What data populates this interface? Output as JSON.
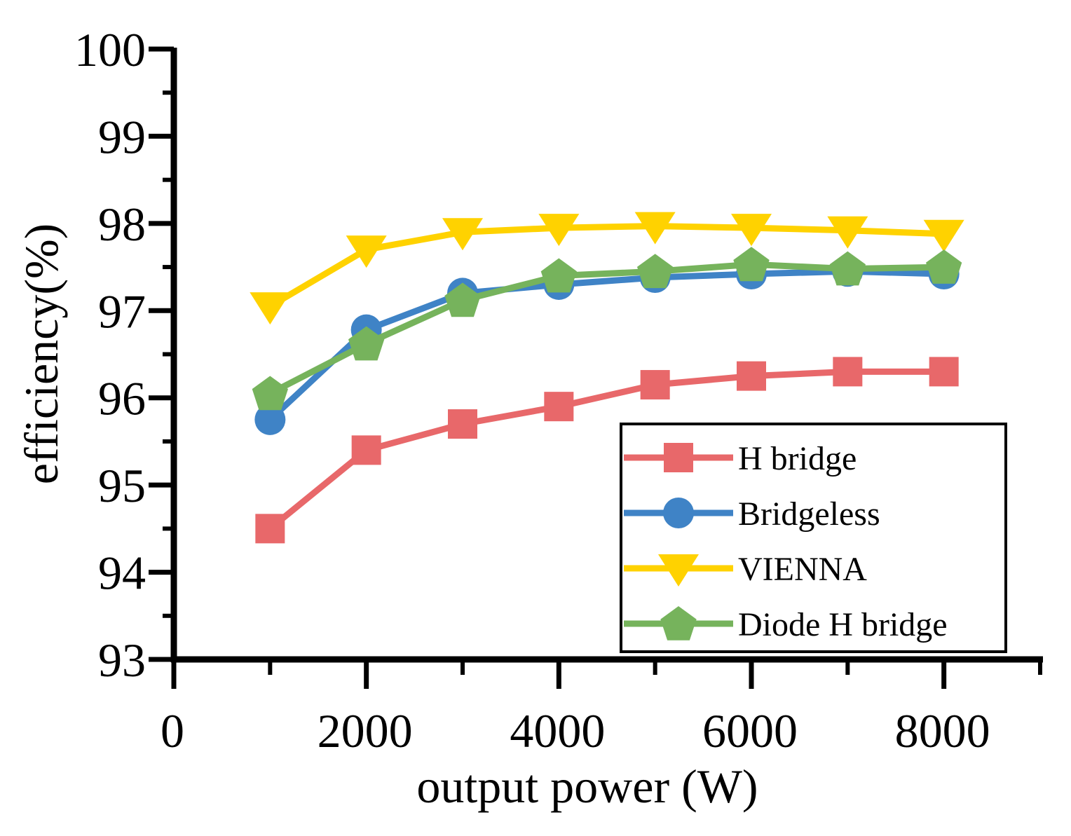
{
  "chart_data": {
    "type": "line",
    "xlabel": "output power (W)",
    "ylabel": "efficiency(%)",
    "xlim": [
      0,
      9000
    ],
    "ylim": [
      93,
      100
    ],
    "x_major_ticks": [
      0,
      2000,
      4000,
      6000,
      8000
    ],
    "x_minor_ticks": [
      1000,
      3000,
      5000,
      7000,
      9000
    ],
    "y_major_ticks": [
      93,
      94,
      95,
      96,
      97,
      98,
      99,
      100
    ],
    "y_minor_ticks": [
      93.5,
      94.5,
      95.5,
      96.5,
      97.5,
      98.5,
      99.5
    ],
    "x_tick_labels": [
      "0",
      "2000",
      "4000",
      "6000",
      "8000"
    ],
    "y_tick_labels": [
      "93",
      "94",
      "95",
      "96",
      "97",
      "98",
      "99",
      "100"
    ],
    "x": [
      1000,
      2000,
      3000,
      4000,
      5000,
      6000,
      7000,
      8000
    ],
    "legend_position": "bottom-right",
    "series": [
      {
        "name": "H bridge",
        "color": "#E8686A",
        "marker": "square",
        "values": [
          94.5,
          95.4,
          95.7,
          95.9,
          96.15,
          96.25,
          96.3,
          96.3
        ]
      },
      {
        "name": "Bridgeless",
        "color": "#3F83C6",
        "marker": "circle",
        "values": [
          95.75,
          96.78,
          97.2,
          97.3,
          97.38,
          97.42,
          97.45,
          97.42
        ]
      },
      {
        "name": "VIENNA",
        "color": "#FFD200",
        "marker": "triangle-down",
        "values": [
          97.05,
          97.7,
          97.9,
          97.95,
          97.97,
          97.95,
          97.92,
          97.88
        ]
      },
      {
        "name": "Diode H bridge",
        "color": "#76B35C",
        "marker": "pentagon",
        "values": [
          96.05,
          96.62,
          97.12,
          97.4,
          97.45,
          97.53,
          97.48,
          97.5
        ]
      }
    ]
  }
}
